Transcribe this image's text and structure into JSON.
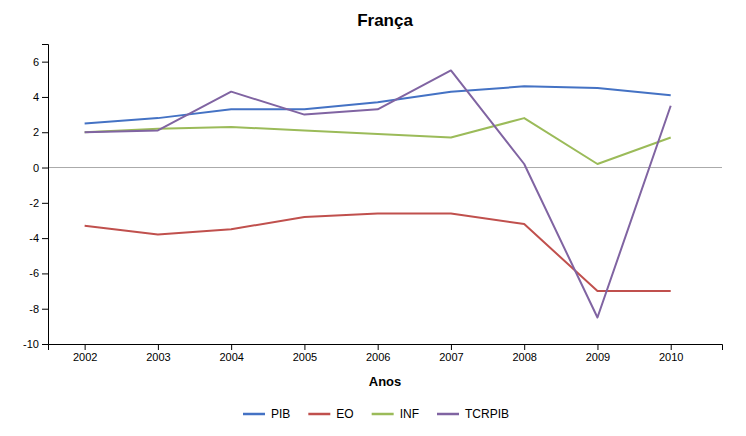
{
  "chart_data": {
    "type": "line",
    "title": "França",
    "xlabel": "Anos",
    "x": [
      2002,
      2003,
      2004,
      2005,
      2006,
      2007,
      2008,
      2009,
      2010
    ],
    "series": [
      {
        "name": "PIB",
        "color": "#4472C4",
        "values": [
          2.5,
          2.8,
          3.3,
          3.3,
          3.7,
          4.3,
          4.6,
          4.5,
          4.1
        ]
      },
      {
        "name": "EO",
        "color": "#C0504D",
        "values": [
          -3.3,
          -3.8,
          -3.5,
          -2.8,
          -2.6,
          -2.6,
          -3.2,
          -7.0,
          -7.0
        ]
      },
      {
        "name": "INF",
        "color": "#9BBB59",
        "values": [
          2.0,
          2.2,
          2.3,
          2.1,
          1.9,
          1.7,
          2.8,
          0.2,
          1.7
        ]
      },
      {
        "name": "TCRPIB",
        "color": "#8064A2",
        "values": [
          2.0,
          2.1,
          4.3,
          3.0,
          3.3,
          5.5,
          0.2,
          -8.5,
          3.5
        ]
      }
    ],
    "xlim": [
      2001.5,
      2010.7
    ],
    "xticks": [
      2002,
      2003,
      2004,
      2005,
      2006,
      2007,
      2008,
      2009,
      2010
    ],
    "ylim": [
      -10,
      7
    ],
    "yticks": [
      -10,
      -8,
      -6,
      -4,
      -2,
      0,
      2,
      4,
      6
    ],
    "grid": false,
    "legend": "bottom"
  }
}
